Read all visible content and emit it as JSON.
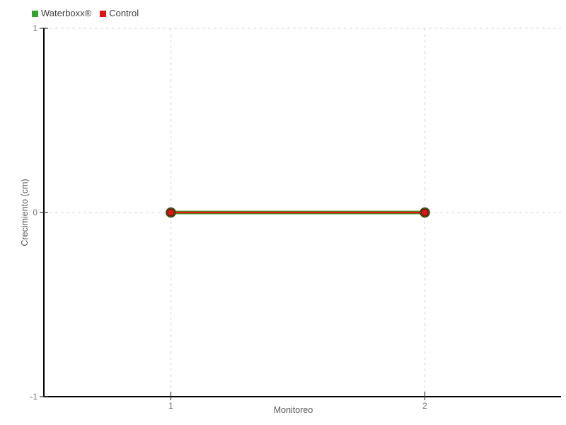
{
  "legend": {
    "items": [
      {
        "label": "Waterboxx®",
        "color": "#35a32f"
      },
      {
        "label": "Control",
        "color": "#e31414"
      }
    ]
  },
  "chart_data": {
    "type": "line",
    "title": "",
    "xlabel": "Monitoreo",
    "ylabel": "Crecimiento (cm)",
    "categories": [
      "1",
      "2"
    ],
    "series": [
      {
        "name": "Waterboxx®",
        "color": "#35a32f",
        "line_width": 5,
        "marker_radius": 6.5,
        "marker_stroke": "#2e4a0c",
        "values": [
          0,
          0
        ]
      },
      {
        "name": "Control",
        "color": "#e31414",
        "line_width": 2.4,
        "marker_radius": 4.7,
        "marker_stroke": "#8c1010",
        "values": [
          0,
          0
        ]
      }
    ],
    "ylim": [
      -1,
      1
    ],
    "yticks": [
      1,
      0,
      -1
    ],
    "grid": true,
    "grid_style": "dashed",
    "legend_position": "top-left",
    "marker": "circle"
  },
  "colors": {
    "background": "#ffffff",
    "grid": "#e3e3e3",
    "axis": "#000000",
    "tick": "#3a3a3a",
    "tick_label": "#757575",
    "axis_label": "#5a5a5a"
  }
}
